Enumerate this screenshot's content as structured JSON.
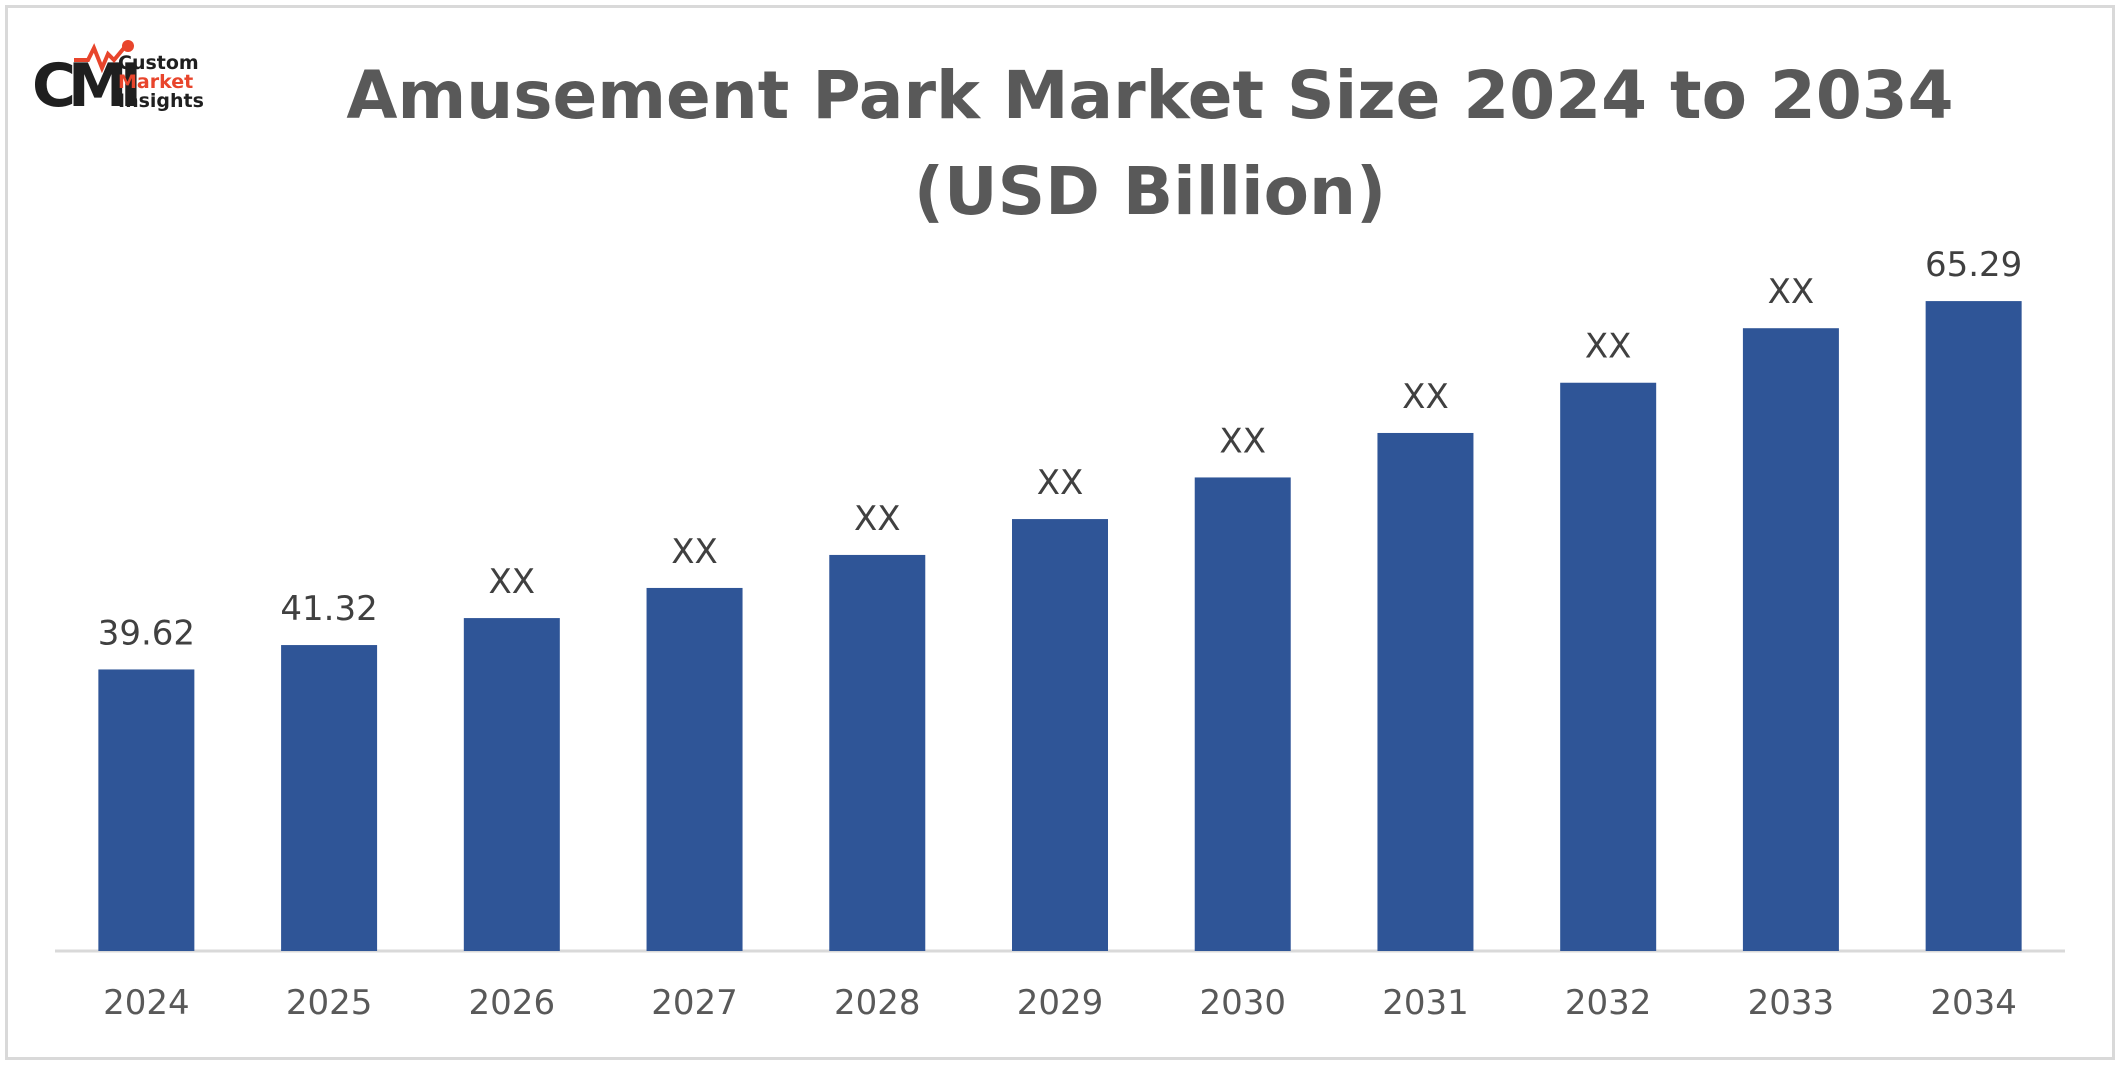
{
  "brand": {
    "logo_mark": "CMI",
    "line1": "Custom",
    "line2": "Market",
    "line3": "Insights",
    "colors": {
      "dark": "#1f1f1f",
      "accent": "#e8452c"
    }
  },
  "chart_data": {
    "type": "bar",
    "title": "Amusement Park Market Size 2024 to 2034 (USD Billion)",
    "categories": [
      "2024",
      "2025",
      "2026",
      "2027",
      "2028",
      "2029",
      "2030",
      "2031",
      "2032",
      "2033",
      "2034"
    ],
    "values": [
      39.62,
      41.32,
      43.2,
      45.3,
      47.6,
      50.1,
      53.0,
      56.1,
      59.6,
      63.4,
      65.29
    ],
    "data_labels": [
      "39.62",
      "41.32",
      "XX",
      "XX",
      "XX",
      "XX",
      "XX",
      "XX",
      "XX",
      "XX",
      "65.29"
    ],
    "xlabel": "",
    "ylabel": "",
    "ylim": [
      20,
      70
    ],
    "grid": false,
    "legend": "none",
    "colors": {
      "bar": "#2f5597",
      "axis": "#d9d9d9",
      "label": "#404040",
      "tick": "#595959",
      "title": "#595959"
    }
  }
}
